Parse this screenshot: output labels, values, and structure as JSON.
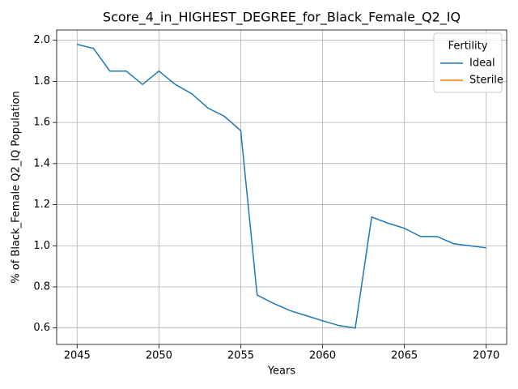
{
  "chart_data": {
    "type": "line",
    "title": "Score_4_in_HIGHEST_DEGREE_for_Black_Female_Q2_IQ",
    "xlabel": "Years",
    "ylabel": "% of Black_Female Q2_IQ Population",
    "x": [
      2045,
      2046,
      2047,
      2048,
      2049,
      2050,
      2051,
      2052,
      2053,
      2054,
      2055,
      2056,
      2057,
      2058,
      2059,
      2060,
      2061,
      2062,
      2063,
      2064,
      2065,
      2066,
      2067,
      2068,
      2069,
      2070
    ],
    "series": [
      {
        "name": "Ideal",
        "color": "#1f77b4",
        "values": [
          1.98,
          1.96,
          1.85,
          1.85,
          1.785,
          1.85,
          1.785,
          1.74,
          1.67,
          1.63,
          1.56,
          0.76,
          0.72,
          0.685,
          0.66,
          0.635,
          0.612,
          0.6,
          1.14,
          1.11,
          1.085,
          1.045,
          1.045,
          1.01,
          1.0,
          0.99
        ]
      },
      {
        "name": "Sterile",
        "color": "#ff7f0e",
        "values": [
          null,
          null,
          null,
          null,
          null,
          null,
          null,
          null,
          null,
          null,
          null,
          null,
          null,
          null,
          null,
          null,
          null,
          null,
          null,
          null,
          null,
          null,
          null,
          null,
          null,
          null
        ]
      }
    ],
    "xlim": [
      2043.75,
      2071.25
    ],
    "xticks": [
      2045,
      2050,
      2055,
      2060,
      2065,
      2070
    ],
    "ylim": [
      0.52,
      2.05
    ],
    "yticks": [
      {
        "value": 0.6,
        "label": "0.6"
      },
      0.8,
      {
        "value": 1.0,
        "label": "1.0"
      },
      1.2,
      1.4,
      1.6,
      1.8,
      {
        "value": 2.0,
        "label": "2.0"
      }
    ],
    "grid": true,
    "legend_title": "Fertility",
    "legend_position": "upper right"
  }
}
